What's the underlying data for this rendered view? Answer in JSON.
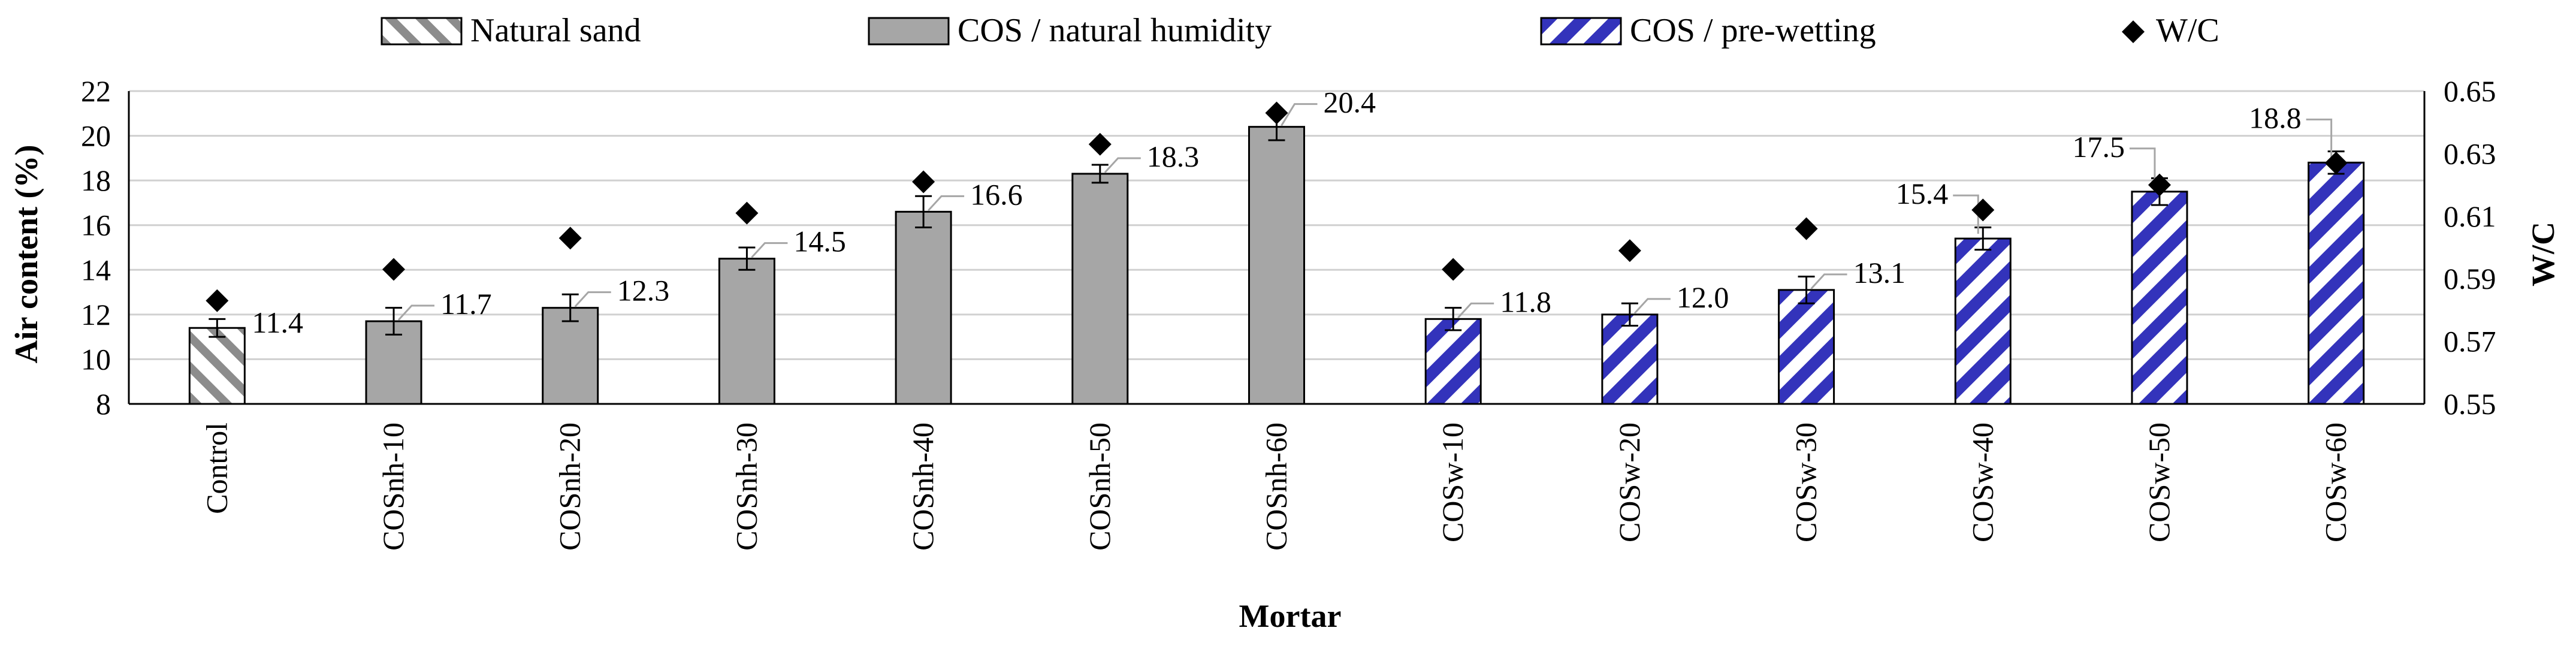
{
  "chart_data": {
    "type": "bar",
    "title": "",
    "xlabel": "Mortar",
    "ylabel": "Air content (%)",
    "y2label": "W/C",
    "ylim": [
      8,
      22
    ],
    "yticks": [
      8,
      10,
      12,
      14,
      16,
      18,
      20,
      22
    ],
    "y2lim": [
      0.55,
      0.65
    ],
    "y2ticks": [
      "0.55",
      "0.57",
      "0.59",
      "0.61",
      "0.63",
      "0.65"
    ],
    "grid": true,
    "legend_position": "top",
    "categories": [
      "Control",
      "COSnh-10",
      "COSnh-20",
      "COSnh-30",
      "COSnh-40",
      "COSnh-50",
      "COSnh-60",
      "COSw-10",
      "COSw-20",
      "COSw-30",
      "COSw-40",
      "COSw-50",
      "COSw-60"
    ],
    "groups": [
      "natural",
      "nh",
      "nh",
      "nh",
      "nh",
      "nh",
      "nh",
      "pw",
      "pw",
      "pw",
      "pw",
      "pw",
      "pw"
    ],
    "values": [
      11.4,
      11.7,
      12.3,
      14.5,
      16.6,
      18.3,
      20.4,
      11.8,
      12.0,
      13.1,
      15.4,
      17.5,
      18.8
    ],
    "value_labels": [
      "11.4",
      "11.7",
      "12.3",
      "14.5",
      "16.6",
      "18.3",
      "20.4",
      "11.8",
      "12.0",
      "13.1",
      "15.4",
      "17.5",
      "18.8"
    ],
    "error": [
      0.4,
      0.6,
      0.6,
      0.5,
      0.7,
      0.4,
      0.6,
      0.5,
      0.5,
      0.6,
      0.5,
      0.6,
      0.5
    ],
    "wc": [
      0.583,
      0.593,
      0.603,
      0.611,
      0.621,
      0.633,
      0.643,
      0.593,
      0.599,
      0.606,
      0.612,
      0.62,
      0.627
    ],
    "series": [
      {
        "name": "Natural sand",
        "key": "natural",
        "color": "#8c8c8c"
      },
      {
        "name": "COS / natural humidity",
        "key": "nh",
        "color": "#a6a6a6"
      },
      {
        "name": "COS / pre-wetting",
        "key": "pw",
        "color": "#3333bb"
      },
      {
        "name": "W/C",
        "key": "wc",
        "color": "#000000"
      }
    ]
  }
}
